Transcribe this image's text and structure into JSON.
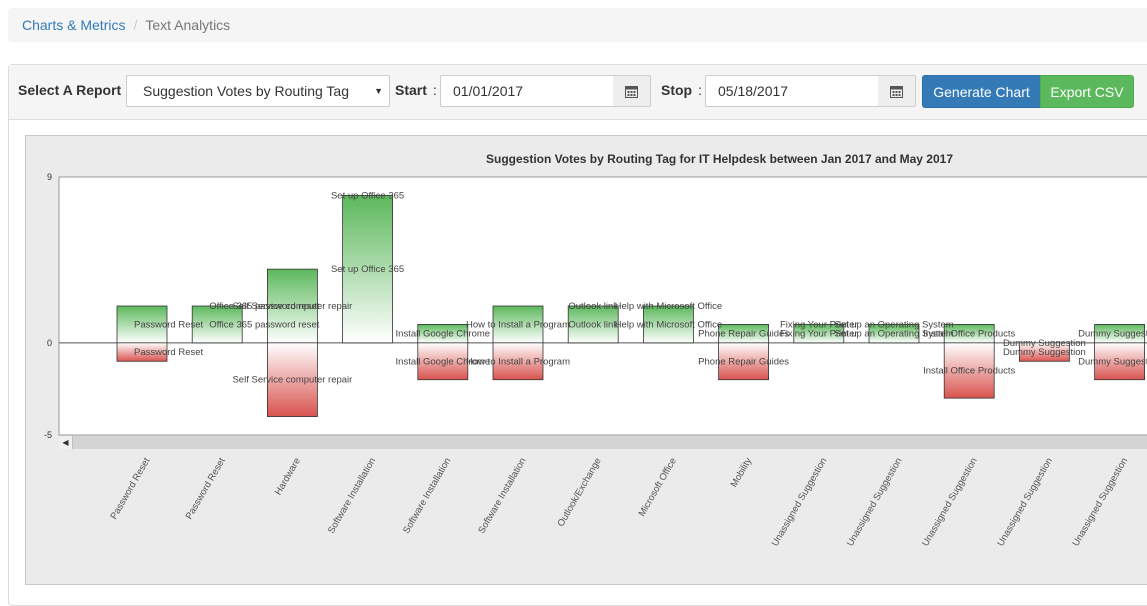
{
  "breadcrumb": {
    "items": [
      {
        "label": "Charts & Metrics"
      },
      {
        "label": "Text Analytics"
      }
    ]
  },
  "controls": {
    "report_label": "Select A Report",
    "report_selected": "Suggestion Votes by Routing Tag",
    "start_label": "Start",
    "start_value": "01/01/2017",
    "stop_label": "Stop",
    "stop_value": "05/18/2017",
    "colon": ":",
    "generate_label": "Generate Chart",
    "export_label": "Export CSV"
  },
  "colors": {
    "primary": "#337ab7",
    "success": "#5cb85c",
    "positive_bar": "#5cb85c",
    "negative_bar": "#d9534f"
  },
  "icons": {
    "calendar": "calendar-icon",
    "scroll_left": "chevron-left-icon",
    "dropdown": "caret-down-icon"
  },
  "chart_data": {
    "type": "bar",
    "title": "Suggestion Votes by Routing Tag for IT Helpdesk between Jan 2017 and May 2017",
    "ylim": [
      -5,
      9
    ],
    "yticks": [
      9,
      0,
      -5
    ],
    "grid": false,
    "categories": [
      "Password Reset",
      "Password Reset",
      "Hardware",
      "Software Installation",
      "Software Installation",
      "Software Installation",
      "Outlook/Exchange",
      "Microsoft Office",
      "Mobility",
      "Unassigned Suggestion",
      "Unassigned Suggestion",
      "Unassigned Suggestion",
      "Unassigned Suggestion",
      "Unassigned Suggestion"
    ],
    "series": [
      {
        "values": [
          2,
          2,
          4,
          8,
          1,
          2,
          2,
          2,
          1,
          1,
          1,
          1,
          0,
          1
        ]
      },
      {
        "values": [
          -1,
          0,
          -4,
          0,
          -2,
          -2,
          0,
          0,
          -2,
          0,
          0,
          -3,
          -1,
          -2
        ]
      }
    ],
    "bar_labels": [
      {
        "i": 0,
        "text": "Password Reset",
        "y": 1,
        "align": "start"
      },
      {
        "i": 0,
        "text": "Password Reset",
        "y": -0.5,
        "align": "start"
      },
      {
        "i": 1,
        "text": "Office 365 password reset",
        "y": 2,
        "align": "start"
      },
      {
        "i": 1,
        "text": "Office 365 password reset",
        "y": 1,
        "align": "start"
      },
      {
        "i": 2,
        "text": "Self Service computer repair",
        "y": 2,
        "align": "middle"
      },
      {
        "i": 2,
        "text": "Self Service computer repair",
        "y": -2,
        "align": "middle"
      },
      {
        "i": 3,
        "text": "Set up Office 365",
        "y": 8,
        "align": "middle"
      },
      {
        "i": 3,
        "text": "Set up Office 365",
        "y": 4,
        "align": "middle"
      },
      {
        "i": 4,
        "text": "Install Google Chrome",
        "y": 0.5,
        "align": "middle"
      },
      {
        "i": 4,
        "text": "Install Google Chrome",
        "y": -1,
        "align": "middle"
      },
      {
        "i": 5,
        "text": "How to Install a Program",
        "y": 1,
        "align": "middle"
      },
      {
        "i": 5,
        "text": "How to Install a Program",
        "y": -1,
        "align": "middle"
      },
      {
        "i": 6,
        "text": "Outlook link",
        "y": 2,
        "align": "middle"
      },
      {
        "i": 6,
        "text": "Outlook link",
        "y": 1,
        "align": "middle"
      },
      {
        "i": 7,
        "text": "Help with Microsoft Office",
        "y": 2,
        "align": "middle"
      },
      {
        "i": 7,
        "text": "Help with Microsoft Office",
        "y": 1,
        "align": "middle"
      },
      {
        "i": 8,
        "text": "Phone Repair Guides",
        "y": 0.5,
        "align": "middle"
      },
      {
        "i": 8,
        "text": "Phone Repair Guides",
        "y": -1,
        "align": "middle"
      },
      {
        "i": 9,
        "text": "Fixing Your Printer",
        "y": 1,
        "align": "middle"
      },
      {
        "i": 9,
        "text": "Fixing Your Printer",
        "y": 0.5,
        "align": "middle"
      },
      {
        "i": 10,
        "text": "Set up an Operating System",
        "y": 1,
        "align": "middle"
      },
      {
        "i": 10,
        "text": "Set up an Operating System",
        "y": 0.5,
        "align": "middle"
      },
      {
        "i": 11,
        "text": "Install Office Products",
        "y": 0.5,
        "align": "middle"
      },
      {
        "i": 11,
        "text": "Install Office Products",
        "y": -1.5,
        "align": "middle"
      },
      {
        "i": 12,
        "text": "Dummy Suggestion",
        "y": 0,
        "align": "middle"
      },
      {
        "i": 12,
        "text": "Dummy Suggestion",
        "y": -0.5,
        "align": "middle"
      },
      {
        "i": 13,
        "text": "Dummy Suggestion",
        "y": 0.5,
        "align": "middle"
      },
      {
        "i": 13,
        "text": "Dummy Suggestion",
        "y": -1,
        "align": "middle"
      }
    ]
  }
}
